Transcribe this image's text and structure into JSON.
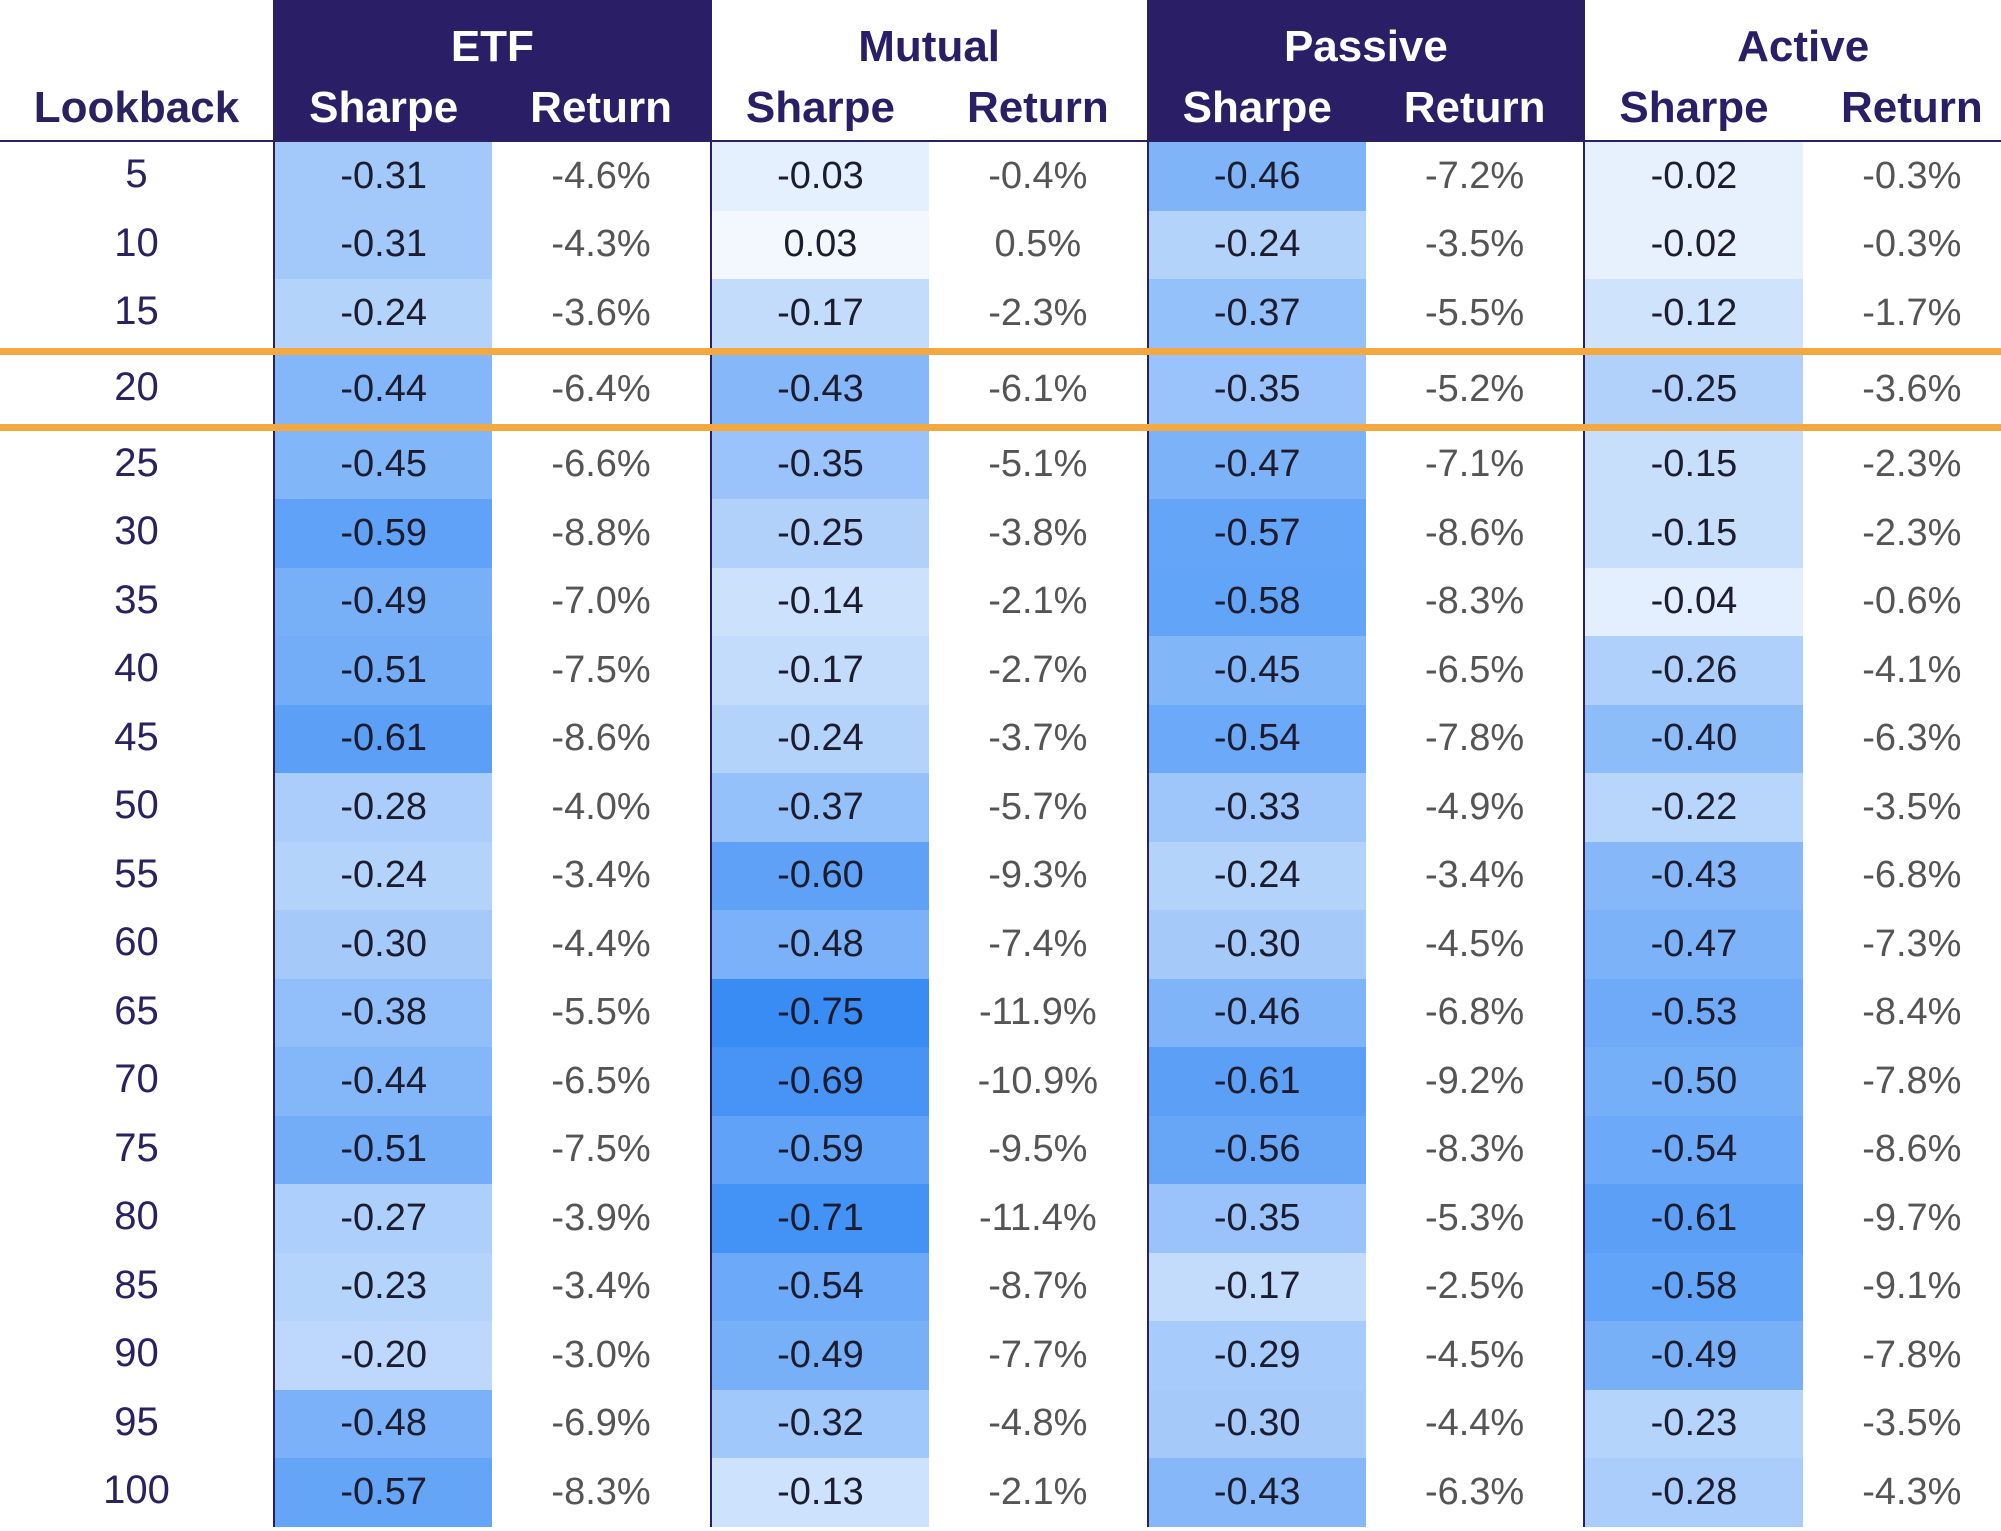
{
  "chart_data": {
    "type": "table",
    "row_header": "Lookback",
    "groups": [
      {
        "name": "ETF",
        "style": "dark"
      },
      {
        "name": "Mutual",
        "style": "light"
      },
      {
        "name": "Passive",
        "style": "dark"
      },
      {
        "name": "Active",
        "style": "light"
      }
    ],
    "metrics": [
      "Sharpe",
      "Return"
    ],
    "highlight_lookback": "20",
    "rows": [
      {
        "lookback": "5",
        "values": [
          [
            "-0.31",
            "-4.6%"
          ],
          [
            "-0.03",
            "-0.4%"
          ],
          [
            "-0.46",
            "-7.2%"
          ],
          [
            "-0.02",
            "-0.3%"
          ]
        ]
      },
      {
        "lookback": "10",
        "values": [
          [
            "-0.31",
            "-4.3%"
          ],
          [
            "0.03",
            "0.5%"
          ],
          [
            "-0.24",
            "-3.5%"
          ],
          [
            "-0.02",
            "-0.3%"
          ]
        ]
      },
      {
        "lookback": "15",
        "values": [
          [
            "-0.24",
            "-3.6%"
          ],
          [
            "-0.17",
            "-2.3%"
          ],
          [
            "-0.37",
            "-5.5%"
          ],
          [
            "-0.12",
            "-1.7%"
          ]
        ]
      },
      {
        "lookback": "20",
        "values": [
          [
            "-0.44",
            "-6.4%"
          ],
          [
            "-0.43",
            "-6.1%"
          ],
          [
            "-0.35",
            "-5.2%"
          ],
          [
            "-0.25",
            "-3.6%"
          ]
        ]
      },
      {
        "lookback": "25",
        "values": [
          [
            "-0.45",
            "-6.6%"
          ],
          [
            "-0.35",
            "-5.1%"
          ],
          [
            "-0.47",
            "-7.1%"
          ],
          [
            "-0.15",
            "-2.3%"
          ]
        ]
      },
      {
        "lookback": "30",
        "values": [
          [
            "-0.59",
            "-8.8%"
          ],
          [
            "-0.25",
            "-3.8%"
          ],
          [
            "-0.57",
            "-8.6%"
          ],
          [
            "-0.15",
            "-2.3%"
          ]
        ]
      },
      {
        "lookback": "35",
        "values": [
          [
            "-0.49",
            "-7.0%"
          ],
          [
            "-0.14",
            "-2.1%"
          ],
          [
            "-0.58",
            "-8.3%"
          ],
          [
            "-0.04",
            "-0.6%"
          ]
        ]
      },
      {
        "lookback": "40",
        "values": [
          [
            "-0.51",
            "-7.5%"
          ],
          [
            "-0.17",
            "-2.7%"
          ],
          [
            "-0.45",
            "-6.5%"
          ],
          [
            "-0.26",
            "-4.1%"
          ]
        ]
      },
      {
        "lookback": "45",
        "values": [
          [
            "-0.61",
            "-8.6%"
          ],
          [
            "-0.24",
            "-3.7%"
          ],
          [
            "-0.54",
            "-7.8%"
          ],
          [
            "-0.40",
            "-6.3%"
          ]
        ]
      },
      {
        "lookback": "50",
        "values": [
          [
            "-0.28",
            "-4.0%"
          ],
          [
            "-0.37",
            "-5.7%"
          ],
          [
            "-0.33",
            "-4.9%"
          ],
          [
            "-0.22",
            "-3.5%"
          ]
        ]
      },
      {
        "lookback": "55",
        "values": [
          [
            "-0.24",
            "-3.4%"
          ],
          [
            "-0.60",
            "-9.3%"
          ],
          [
            "-0.24",
            "-3.4%"
          ],
          [
            "-0.43",
            "-6.8%"
          ]
        ]
      },
      {
        "lookback": "60",
        "values": [
          [
            "-0.30",
            "-4.4%"
          ],
          [
            "-0.48",
            "-7.4%"
          ],
          [
            "-0.30",
            "-4.5%"
          ],
          [
            "-0.47",
            "-7.3%"
          ]
        ]
      },
      {
        "lookback": "65",
        "values": [
          [
            "-0.38",
            "-5.5%"
          ],
          [
            "-0.75",
            "-11.9%"
          ],
          [
            "-0.46",
            "-6.8%"
          ],
          [
            "-0.53",
            "-8.4%"
          ]
        ]
      },
      {
        "lookback": "70",
        "values": [
          [
            "-0.44",
            "-6.5%"
          ],
          [
            "-0.69",
            "-10.9%"
          ],
          [
            "-0.61",
            "-9.2%"
          ],
          [
            "-0.50",
            "-7.8%"
          ]
        ]
      },
      {
        "lookback": "75",
        "values": [
          [
            "-0.51",
            "-7.5%"
          ],
          [
            "-0.59",
            "-9.5%"
          ],
          [
            "-0.56",
            "-8.3%"
          ],
          [
            "-0.54",
            "-8.6%"
          ]
        ]
      },
      {
        "lookback": "80",
        "values": [
          [
            "-0.27",
            "-3.9%"
          ],
          [
            "-0.71",
            "-11.4%"
          ],
          [
            "-0.35",
            "-5.3%"
          ],
          [
            "-0.61",
            "-9.7%"
          ]
        ]
      },
      {
        "lookback": "85",
        "values": [
          [
            "-0.23",
            "-3.4%"
          ],
          [
            "-0.54",
            "-8.7%"
          ],
          [
            "-0.17",
            "-2.5%"
          ],
          [
            "-0.58",
            "-9.1%"
          ]
        ]
      },
      {
        "lookback": "90",
        "values": [
          [
            "-0.20",
            "-3.0%"
          ],
          [
            "-0.49",
            "-7.7%"
          ],
          [
            "-0.29",
            "-4.5%"
          ],
          [
            "-0.49",
            "-7.8%"
          ]
        ]
      },
      {
        "lookback": "95",
        "values": [
          [
            "-0.48",
            "-6.9%"
          ],
          [
            "-0.32",
            "-4.8%"
          ],
          [
            "-0.30",
            "-4.4%"
          ],
          [
            "-0.23",
            "-3.5%"
          ]
        ]
      },
      {
        "lookback": "100",
        "values": [
          [
            "-0.57",
            "-8.3%"
          ],
          [
            "-0.13",
            "-2.1%"
          ],
          [
            "-0.43",
            "-6.3%"
          ],
          [
            "-0.28",
            "-4.3%"
          ]
        ]
      }
    ]
  },
  "colors": {
    "header_dark": "#2a1f66",
    "header_text_dark": "#2a2160",
    "highlight_border": "#f4a940",
    "heat_low": "#ffffff",
    "heat_high": "#3a8cf5"
  }
}
